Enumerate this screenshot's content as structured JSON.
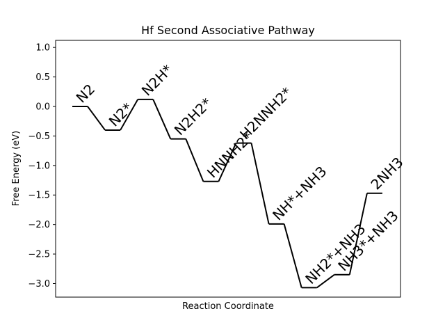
{
  "chart_data": {
    "type": "line",
    "title": "Hf Second Associative Pathway",
    "xlabel": "Reaction Coordinate",
    "ylabel": "Free Energy (eV)",
    "ylim": [
      -3.23,
      1.12
    ],
    "yticks": [
      1.0,
      0.5,
      0.0,
      -0.5,
      -1.0,
      -1.5,
      -2.0,
      -2.5,
      -3.0
    ],
    "ytick_labels": [
      "1.0",
      "0.5",
      "0.0",
      "−0.5",
      "−1.0",
      "−1.5",
      "−2.0",
      "−2.5",
      "−3.0"
    ],
    "grid": false,
    "line_color": "#000000",
    "steps": [
      {
        "label": "N2",
        "value": 0.0
      },
      {
        "label": "N2*",
        "value": -0.4
      },
      {
        "label": "N2H*",
        "value": 0.12
      },
      {
        "label": "N2H2*",
        "value": -0.55
      },
      {
        "label": "HNNH2*",
        "value": -1.27
      },
      {
        "label": "H2NNH2*",
        "value": -0.62
      },
      {
        "label": "NH*+NH3",
        "value": -1.99
      },
      {
        "label": "NH2*+NH3",
        "value": -3.07
      },
      {
        "label": "NH3*+NH3",
        "value": -2.85
      },
      {
        "label": "2NH3",
        "value": -1.47
      }
    ]
  }
}
